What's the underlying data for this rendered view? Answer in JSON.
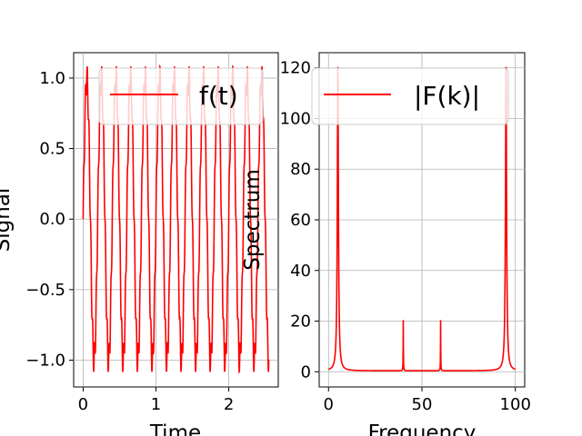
{
  "chart_data": [
    {
      "type": "line",
      "xlabel": "Time",
      "ylabel": "Signal",
      "xlim": [
        -0.13,
        2.68
      ],
      "ylim": [
        -1.19,
        1.18
      ],
      "xticks": [
        0,
        1,
        2
      ],
      "xtick_labels": [
        "0",
        "1",
        "2"
      ],
      "yticks": [
        -1.0,
        -0.5,
        0.0,
        0.5,
        1.0
      ],
      "ytick_labels": [
        "−1.0",
        "−0.5",
        "0.0",
        "0.5",
        "1.0"
      ],
      "grid": true,
      "legend": "top-right",
      "series": [
        {
          "name": "f(t)",
          "color": "#ff0000",
          "formula": "sin(2*pi*5*t) + 0.1*sin(2*pi*40*t)",
          "t_range": [
            0,
            2.55
          ],
          "samples": 1400
        }
      ]
    },
    {
      "type": "line",
      "xlabel": "Frequency",
      "ylabel": "Spectrum",
      "xlim": [
        -5,
        105
      ],
      "ylim": [
        -6,
        126
      ],
      "xticks": [
        0,
        50,
        100
      ],
      "xtick_labels": [
        "0",
        "50",
        "100"
      ],
      "yticks": [
        0,
        20,
        40,
        60,
        80,
        100,
        120
      ],
      "ytick_labels": [
        "0",
        "20",
        "40",
        "60",
        "80",
        "100",
        "120"
      ],
      "grid": true,
      "legend": "top-right",
      "series": [
        {
          "name": "|F(k)|",
          "color": "#ff0000",
          "peaks": [
            {
              "k": 5,
              "height": 120
            },
            {
              "k": 40,
              "height": 20
            },
            {
              "k": 60,
              "height": 20
            },
            {
              "k": 95,
              "height": 120
            }
          ],
          "baseline": 0.4,
          "k_range": [
            0,
            100
          ]
        }
      ]
    }
  ]
}
